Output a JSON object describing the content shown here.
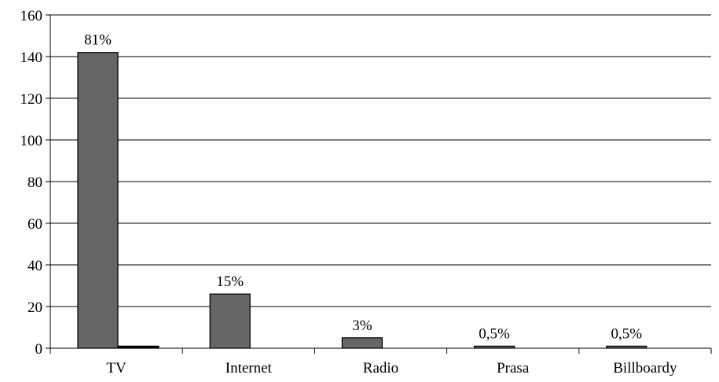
{
  "chart_data": {
    "type": "bar",
    "categories": [
      "TV",
      "Internet",
      "Radio",
      "Prasa",
      "Billboardy"
    ],
    "series": [
      {
        "values": [
          142,
          26,
          5,
          1,
          1
        ],
        "color": "#666666"
      },
      {
        "values": [
          1,
          0,
          0,
          0,
          0
        ],
        "color": "#000000"
      }
    ],
    "data_labels": [
      "81%",
      "15%",
      "3%",
      "0,5%",
      "0,5%"
    ],
    "ylim": [
      0,
      160
    ],
    "yticks": [
      0,
      20,
      40,
      60,
      80,
      100,
      120,
      140,
      160
    ],
    "grid": true,
    "legend": "none",
    "title": "",
    "xlabel": "",
    "ylabel": ""
  }
}
